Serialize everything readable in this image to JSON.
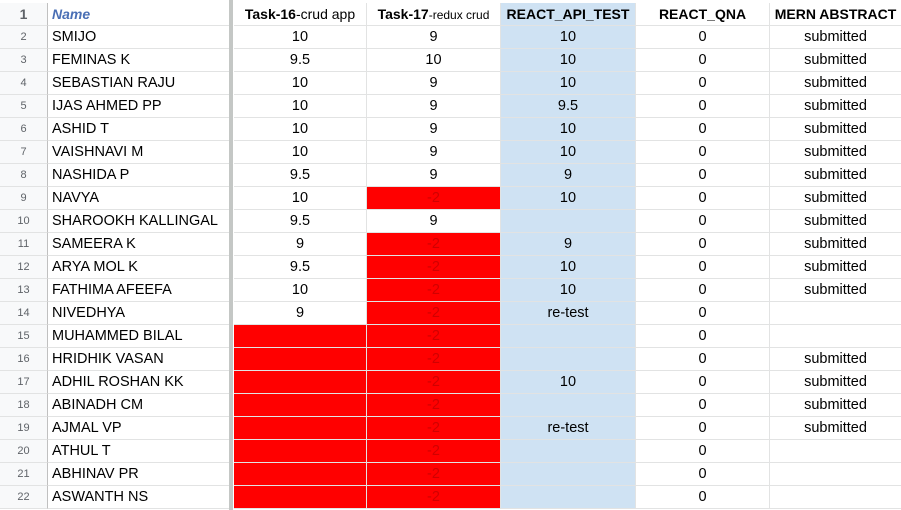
{
  "header": {
    "row_number": "1",
    "name": "Name",
    "task16_bold": "Task-16",
    "task16_rest": "-crud app",
    "task17_bold": "Task-17",
    "task17_rest": "-redux crud",
    "api": "REACT_API_TEST",
    "qna": "REACT_QNA",
    "mern": "MERN ABSTRACT"
  },
  "colors": {
    "api_column": "#cfe2f3",
    "negative_cell": "#ff0000",
    "negative_text": "#d10000"
  },
  "rows": [
    {
      "n": "2",
      "name": "SMIJO",
      "t16": "10",
      "t17": "9",
      "api": "10",
      "qna": "0",
      "mern": "submitted",
      "t16_red": false,
      "t17_red": false
    },
    {
      "n": "3",
      "name": "FEMINAS K",
      "t16": "9.5",
      "t17": "10",
      "api": "10",
      "qna": "0",
      "mern": "submitted",
      "t16_red": false,
      "t17_red": false
    },
    {
      "n": "4",
      "name": "SEBASTIAN RAJU",
      "t16": "10",
      "t17": "9",
      "api": "10",
      "qna": "0",
      "mern": "submitted",
      "t16_red": false,
      "t17_red": false
    },
    {
      "n": "5",
      "name": "IJAS AHMED PP",
      "t16": "10",
      "t17": "9",
      "api": "9.5",
      "qna": "0",
      "mern": "submitted",
      "t16_red": false,
      "t17_red": false
    },
    {
      "n": "6",
      "name": "ASHID T",
      "t16": "10",
      "t17": "9",
      "api": "10",
      "qna": "0",
      "mern": "submitted",
      "t16_red": false,
      "t17_red": false
    },
    {
      "n": "7",
      "name": "VAISHNAVI M",
      "t16": "10",
      "t17": "9",
      "api": "10",
      "qna": "0",
      "mern": "submitted",
      "t16_red": false,
      "t17_red": false
    },
    {
      "n": "8",
      "name": "NASHIDA P",
      "t16": "9.5",
      "t17": "9",
      "api": "9",
      "qna": "0",
      "mern": "submitted",
      "t16_red": false,
      "t17_red": false
    },
    {
      "n": "9",
      "name": "NAVYA",
      "t16": "10",
      "t17": "-2",
      "api": "10",
      "qna": "0",
      "mern": "submitted",
      "t16_red": false,
      "t17_red": true
    },
    {
      "n": "10",
      "name": "SHAROOKH KALLINGAL",
      "t16": "9.5",
      "t17": "9",
      "api": "",
      "qna": "0",
      "mern": "submitted",
      "t16_red": false,
      "t17_red": false
    },
    {
      "n": "11",
      "name": "SAMEERA K",
      "t16": "9",
      "t17": "-2",
      "api": "9",
      "qna": "0",
      "mern": "submitted",
      "t16_red": false,
      "t17_red": true
    },
    {
      "n": "12",
      "name": "ARYA MOL K",
      "t16": "9.5",
      "t17": "-2",
      "api": "10",
      "qna": "0",
      "mern": "submitted",
      "t16_red": false,
      "t17_red": true
    },
    {
      "n": "13",
      "name": "FATHIMA AFEEFA",
      "t16": "10",
      "t17": "-2",
      "api": "10",
      "qna": "0",
      "mern": "submitted",
      "t16_red": false,
      "t17_red": true
    },
    {
      "n": "14",
      "name": "NIVEDHYA",
      "t16": "9",
      "t17": "-2",
      "api": "re-test",
      "qna": "0",
      "mern": "",
      "t16_red": false,
      "t17_red": true
    },
    {
      "n": "15",
      "name": "MUHAMMED BILAL",
      "t16": "",
      "t17": "-2",
      "api": "",
      "qna": "0",
      "mern": "",
      "t16_red": true,
      "t17_red": true
    },
    {
      "n": "16",
      "name": "HRIDHIK VASAN",
      "t16": "",
      "t17": "-2",
      "api": "",
      "qna": "0",
      "mern": "submitted",
      "t16_red": true,
      "t17_red": true
    },
    {
      "n": "17",
      "name": "ADHIL ROSHAN KK",
      "t16": "",
      "t17": "-2",
      "api": "10",
      "qna": "0",
      "mern": "submitted",
      "t16_red": true,
      "t17_red": true
    },
    {
      "n": "18",
      "name": "ABINADH CM",
      "t16": "",
      "t17": "-2",
      "api": "",
      "qna": "0",
      "mern": "submitted",
      "t16_red": true,
      "t17_red": true
    },
    {
      "n": "19",
      "name": "AJMAL VP",
      "t16": "",
      "t17": "-2",
      "api": "re-test",
      "qna": "0",
      "mern": "submitted",
      "t16_red": true,
      "t17_red": true
    },
    {
      "n": "20",
      "name": "ATHUL T",
      "t16": "",
      "t17": "-2",
      "api": "",
      "qna": "0",
      "mern": "",
      "t16_red": true,
      "t17_red": true
    },
    {
      "n": "21",
      "name": "ABHINAV PR",
      "t16": "",
      "t17": "-2",
      "api": "",
      "qna": "0",
      "mern": "",
      "t16_red": true,
      "t17_red": true
    },
    {
      "n": "22",
      "name": "ASWANTH NS",
      "t16": "",
      "t17": "-2",
      "api": "",
      "qna": "0",
      "mern": "",
      "t16_red": true,
      "t17_red": true
    }
  ]
}
